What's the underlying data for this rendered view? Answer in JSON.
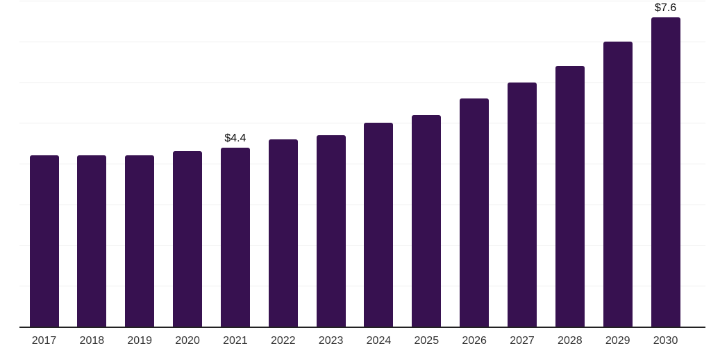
{
  "colors": {
    "bar": "#371150",
    "gridline": "#efefef",
    "axis": "#222222",
    "tick_label": "#333333",
    "data_label": "#0a0a0a",
    "background": "#ffffff"
  },
  "chart_data": {
    "type": "bar",
    "title": "",
    "xlabel": "",
    "ylabel": "",
    "categories": [
      "2017",
      "2018",
      "2019",
      "2020",
      "2021",
      "2022",
      "2023",
      "2024",
      "2025",
      "2026",
      "2027",
      "2028",
      "2029",
      "2030"
    ],
    "values": [
      4.2,
      4.2,
      4.2,
      4.3,
      4.4,
      4.6,
      4.7,
      5.0,
      5.2,
      5.6,
      6.0,
      6.4,
      7.0,
      7.6
    ],
    "data_labels": {
      "2021": "$4.4",
      "2030": "$7.6"
    },
    "ylim": [
      0,
      8
    ],
    "grid": true,
    "grid_interval": 1,
    "y_axis_tick_labels_visible": false,
    "legend_position": "none"
  }
}
